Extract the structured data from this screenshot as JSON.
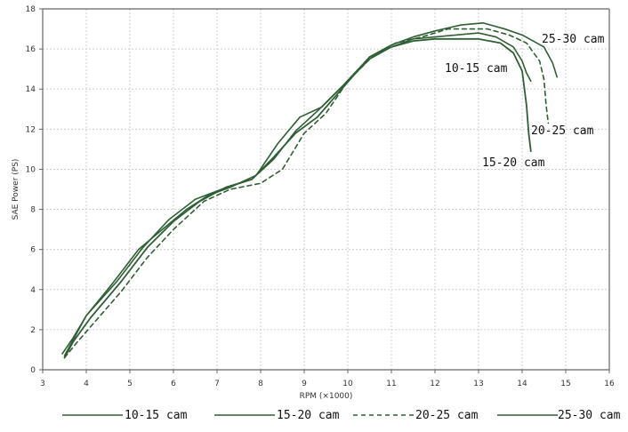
{
  "chart_data": {
    "type": "line",
    "title": "",
    "xlabel": "RPM (×1000)",
    "ylabel": "SAE Power (PS)",
    "xlim": [
      3,
      16
    ],
    "ylim": [
      0,
      18
    ],
    "x_ticks": [
      3,
      4,
      5,
      6,
      7,
      8,
      9,
      10,
      11,
      12,
      13,
      14,
      15,
      16
    ],
    "y_ticks": [
      0,
      2,
      4,
      6,
      8,
      10,
      12,
      14,
      16,
      18
    ],
    "grid": true,
    "legend_position": "bottom",
    "series": [
      {
        "name": "10-15 cam",
        "color": "#2f5f35",
        "dash": "solid",
        "points": [
          [
            3.5,
            0.7
          ],
          [
            3.7,
            1.5
          ],
          [
            4.0,
            2.7
          ],
          [
            4.6,
            4.3
          ],
          [
            5.2,
            6.0
          ],
          [
            5.8,
            7.1
          ],
          [
            6.3,
            8.0
          ],
          [
            6.8,
            8.7
          ],
          [
            7.3,
            9.1
          ],
          [
            7.9,
            9.7
          ],
          [
            8.4,
            11.3
          ],
          [
            8.9,
            12.6
          ],
          [
            9.4,
            13.1
          ],
          [
            10.0,
            14.4
          ],
          [
            10.5,
            15.5
          ],
          [
            11.0,
            16.1
          ],
          [
            11.5,
            16.5
          ],
          [
            12.0,
            16.6
          ],
          [
            12.5,
            16.7
          ],
          [
            13.0,
            16.8
          ],
          [
            13.4,
            16.6
          ],
          [
            13.8,
            16.1
          ],
          [
            14.0,
            15.4
          ],
          [
            14.1,
            14.8
          ],
          [
            14.2,
            14.4
          ]
        ]
      },
      {
        "name": "15-20 cam",
        "color": "#2f5f35",
        "dash": "solid",
        "points": [
          [
            3.5,
            0.6
          ],
          [
            3.7,
            1.4
          ],
          [
            4.1,
            2.6
          ],
          [
            4.8,
            4.4
          ],
          [
            5.4,
            6.1
          ],
          [
            6.0,
            7.4
          ],
          [
            6.6,
            8.4
          ],
          [
            7.2,
            9.1
          ],
          [
            7.8,
            9.5
          ],
          [
            8.3,
            10.6
          ],
          [
            8.8,
            11.8
          ],
          [
            9.3,
            12.6
          ],
          [
            9.9,
            14.1
          ],
          [
            10.5,
            15.6
          ],
          [
            11.0,
            16.1
          ],
          [
            11.5,
            16.4
          ],
          [
            12.0,
            16.5
          ],
          [
            12.5,
            16.5
          ],
          [
            13.0,
            16.5
          ],
          [
            13.5,
            16.3
          ],
          [
            13.8,
            15.8
          ],
          [
            14.0,
            14.9
          ],
          [
            14.1,
            13.2
          ],
          [
            14.15,
            11.8
          ],
          [
            14.2,
            10.9
          ]
        ]
      },
      {
        "name": "20-25 cam",
        "color": "#2f5f35",
        "dash": "dashed",
        "points": [
          [
            3.5,
            0.6
          ],
          [
            3.8,
            1.4
          ],
          [
            4.2,
            2.4
          ],
          [
            4.8,
            3.9
          ],
          [
            5.4,
            5.6
          ],
          [
            6.0,
            7.0
          ],
          [
            6.7,
            8.4
          ],
          [
            7.3,
            9.0
          ],
          [
            8.0,
            9.3
          ],
          [
            8.5,
            10.0
          ],
          [
            9.0,
            11.8
          ],
          [
            9.5,
            12.8
          ],
          [
            10.0,
            14.4
          ],
          [
            10.6,
            15.7
          ],
          [
            11.1,
            16.3
          ],
          [
            11.7,
            16.6
          ],
          [
            12.3,
            17.0
          ],
          [
            12.8,
            17.0
          ],
          [
            13.2,
            17.0
          ],
          [
            13.7,
            16.7
          ],
          [
            14.1,
            16.3
          ],
          [
            14.4,
            15.4
          ],
          [
            14.5,
            14.5
          ],
          [
            14.55,
            13.2
          ],
          [
            14.6,
            12.3
          ]
        ]
      },
      {
        "name": "25-30 cam",
        "color": "#2f5f35",
        "dash": "solid",
        "points": [
          [
            3.45,
            0.8
          ],
          [
            3.7,
            1.6
          ],
          [
            4.0,
            2.7
          ],
          [
            4.7,
            4.4
          ],
          [
            5.3,
            6.1
          ],
          [
            5.9,
            7.5
          ],
          [
            6.5,
            8.5
          ],
          [
            7.1,
            9.0
          ],
          [
            7.8,
            9.5
          ],
          [
            8.3,
            10.5
          ],
          [
            8.8,
            11.9
          ],
          [
            9.3,
            12.9
          ],
          [
            9.9,
            14.2
          ],
          [
            10.5,
            15.6
          ],
          [
            11.0,
            16.2
          ],
          [
            11.5,
            16.6
          ],
          [
            12.0,
            16.9
          ],
          [
            12.6,
            17.2
          ],
          [
            13.1,
            17.3
          ],
          [
            13.6,
            17.0
          ],
          [
            14.0,
            16.7
          ],
          [
            14.5,
            16.1
          ],
          [
            14.7,
            15.3
          ],
          [
            14.8,
            14.6
          ]
        ]
      }
    ],
    "annotations": [
      {
        "text": "25-30 cam"
      },
      {
        "text": "10-15 cam"
      },
      {
        "text": "20-25 cam"
      },
      {
        "text": "15-20 cam"
      }
    ],
    "legend": [
      {
        "name": "10-15 cam"
      },
      {
        "name": "15-20 cam"
      },
      {
        "name": "20-25 cam"
      },
      {
        "name": "25-30 cam"
      }
    ]
  }
}
